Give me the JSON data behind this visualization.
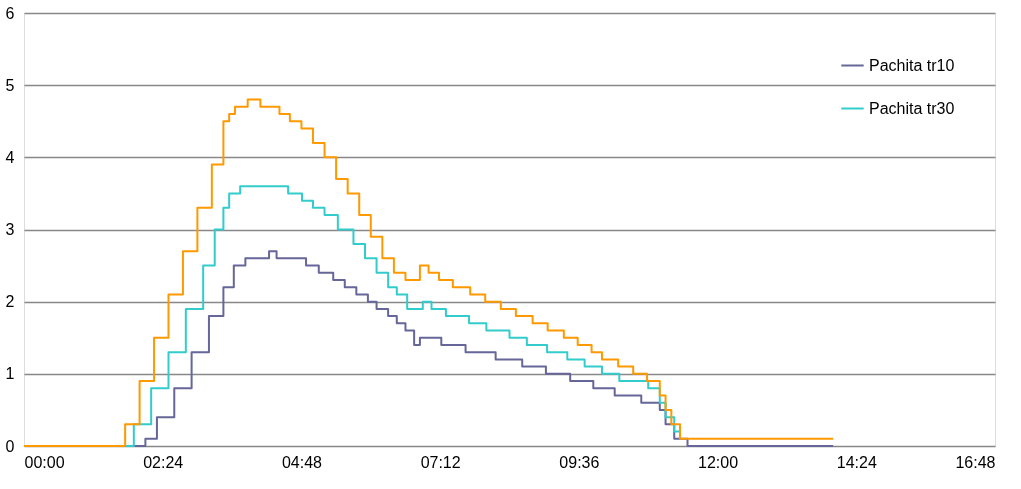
{
  "chart_data": {
    "type": "step",
    "xlim": [
      0,
      16.8
    ],
    "xticks": [
      {
        "value": 0,
        "label": "00:00"
      },
      {
        "value": 2.4,
        "label": "02:24"
      },
      {
        "value": 4.8,
        "label": "04:48"
      },
      {
        "value": 7.2,
        "label": "07:12"
      },
      {
        "value": 9.6,
        "label": "09:36"
      },
      {
        "value": 12,
        "label": "12:00"
      },
      {
        "value": 14.4,
        "label": "14:24"
      },
      {
        "value": 16.8,
        "label": "16:48"
      }
    ],
    "ylim": [
      0,
      6
    ],
    "yticks": [
      0,
      1,
      2,
      3,
      4,
      5,
      6
    ],
    "grid": "y",
    "legend": "top right",
    "series": [
      {
        "name": "Pachita tr10",
        "color": "#666699",
        "x": [
          0,
          1.97,
          2.1,
          2.3,
          2.6,
          2.9,
          3.2,
          3.45,
          3.63,
          3.83,
          4.24,
          4.37,
          4.88,
          5.1,
          5.35,
          5.55,
          5.75,
          5.95,
          6.1,
          6.3,
          6.45,
          6.6,
          6.75,
          6.85,
          7.22,
          7.64,
          8.16,
          8.62,
          9.03,
          9.45,
          9.85,
          10.22,
          10.68,
          11.0,
          11.1,
          11.25,
          11.48,
          14.0
        ],
        "values": [
          0,
          0,
          0.1,
          0.4,
          0.8,
          1.3,
          1.8,
          2.2,
          2.5,
          2.6,
          2.7,
          2.6,
          2.5,
          2.4,
          2.3,
          2.2,
          2.1,
          2.0,
          1.9,
          1.8,
          1.7,
          1.6,
          1.4,
          1.5,
          1.4,
          1.3,
          1.2,
          1.1,
          1.0,
          0.9,
          0.8,
          0.7,
          0.6,
          0.5,
          0.3,
          0.1,
          0,
          0
        ]
      },
      {
        "name": "Pachita tr30",
        "color": "#33cccc",
        "x": [
          0,
          1.73,
          1.9,
          2.2,
          2.5,
          2.8,
          3.1,
          3.3,
          3.45,
          3.55,
          3.74,
          4.57,
          4.81,
          5.0,
          5.2,
          5.43,
          5.7,
          5.9,
          6.1,
          6.3,
          6.45,
          6.63,
          6.9,
          7.05,
          7.3,
          7.7,
          8.0,
          8.4,
          8.7,
          9.05,
          9.4,
          9.7,
          10.0,
          10.3,
          10.8,
          11.0,
          11.1,
          11.25,
          11.35
        ],
        "values": [
          0,
          0,
          0.3,
          0.8,
          1.3,
          1.9,
          2.5,
          3.0,
          3.3,
          3.5,
          3.6,
          3.5,
          3.4,
          3.3,
          3.2,
          3.0,
          2.8,
          2.6,
          2.4,
          2.2,
          2.1,
          1.9,
          2.0,
          1.9,
          1.8,
          1.7,
          1.6,
          1.5,
          1.4,
          1.3,
          1.2,
          1.1,
          1.0,
          0.9,
          0.8,
          0.6,
          0.4,
          0.2,
          0.1
        ]
      },
      {
        "color": "#ff9900",
        "x": [
          0,
          1.55,
          1.75,
          2.0,
          2.25,
          2.5,
          2.75,
          3.0,
          3.25,
          3.45,
          3.55,
          3.65,
          3.87,
          4.09,
          4.42,
          4.6,
          4.8,
          5.0,
          5.2,
          5.4,
          5.6,
          5.8,
          6.0,
          6.2,
          6.4,
          6.6,
          6.72,
          6.85,
          7.0,
          7.18,
          7.42,
          7.72,
          7.98,
          8.25,
          8.51,
          8.8,
          9.06,
          9.34,
          9.58,
          9.82,
          10.0,
          10.28,
          10.54,
          10.78,
          11.0,
          11.1,
          11.2,
          11.35,
          14.0
        ],
        "values": [
          0,
          0,
          0.3,
          0.9,
          1.5,
          2.1,
          2.7,
          3.3,
          3.9,
          4.5,
          4.6,
          4.7,
          4.8,
          4.7,
          4.6,
          4.5,
          4.4,
          4.2,
          4.0,
          3.7,
          3.5,
          3.2,
          2.9,
          2.6,
          2.4,
          2.3,
          2.3,
          2.5,
          2.4,
          2.3,
          2.2,
          2.1,
          2.0,
          1.9,
          1.8,
          1.7,
          1.6,
          1.5,
          1.4,
          1.3,
          1.2,
          1.1,
          1.0,
          0.9,
          0.7,
          0.5,
          0.3,
          0.1,
          0.1
        ]
      }
    ]
  }
}
